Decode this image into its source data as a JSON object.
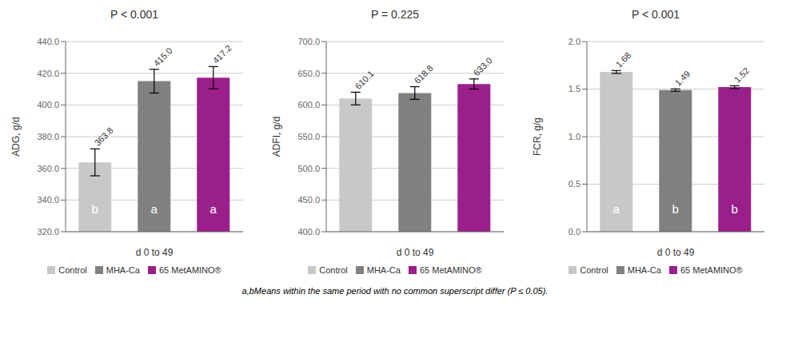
{
  "chart_data": [
    {
      "type": "bar",
      "title": "P < 0.001",
      "x_label": "d 0 to 49",
      "y_label": "ADG, g/d",
      "categories": [
        "Control",
        "MHA-Ca",
        "65 MetAMINO®"
      ],
      "colors": [
        "#c8c8c8",
        "#808080",
        "#9b1f8a"
      ],
      "values": [
        363.8,
        415.0,
        417.2
      ],
      "errors": [
        8.5,
        7.5,
        7.0
      ],
      "value_labels": [
        "363.8",
        "415.0",
        "417.2"
      ],
      "data_labels": true,
      "annotations": [
        {
          "category": "Control",
          "text": "b",
          "color": "#ffffff"
        },
        {
          "category": "MHA-Ca",
          "text": "a",
          "color": "#ffffff"
        },
        {
          "category": "65 MetAMINO®",
          "text": "a",
          "color": "#ffffff"
        }
      ],
      "ylim": [
        320.0,
        440.0
      ],
      "yticks": [
        {
          "value": 320.0,
          "label": "320.0"
        },
        {
          "value": 340.0,
          "label": "340.0"
        },
        {
          "value": 360.0,
          "label": "360.0"
        },
        {
          "value": 380.0,
          "label": "380.0"
        },
        {
          "value": 400.0,
          "label": "400.0"
        },
        {
          "value": 420.0,
          "label": "420.0"
        },
        {
          "value": 440.0,
          "label": "440.0"
        }
      ],
      "grid": true,
      "legend": "bottom",
      "tick_labels": "y"
    },
    {
      "type": "bar",
      "title": "P = 0.225",
      "x_label": "d 0 to 49",
      "y_label": "ADFI, g/d",
      "categories": [
        "Control",
        "MHA-Ca",
        "65 MetAMINO®"
      ],
      "colors": [
        "#c8c8c8",
        "#808080",
        "#9b1f8a"
      ],
      "values": [
        610.1,
        618.8,
        633.0
      ],
      "errors": [
        10.0,
        10.0,
        8.0
      ],
      "value_labels": [
        "610.1",
        "618.8",
        "633.0"
      ],
      "data_labels": true,
      "ylim": [
        400.0,
        700.0
      ],
      "yticks": [
        {
          "value": 400.0,
          "label": "400.0"
        },
        {
          "value": 450.0,
          "label": "450.0"
        },
        {
          "value": 500.0,
          "label": "500.0"
        },
        {
          "value": 550.0,
          "label": "550.0"
        },
        {
          "value": 600.0,
          "label": "600.0"
        },
        {
          "value": 650.0,
          "label": "650.0"
        },
        {
          "value": 700.0,
          "label": "700.0"
        }
      ],
      "grid": true,
      "legend": "bottom",
      "tick_labels": "y"
    },
    {
      "type": "bar",
      "title": "P < 0.001",
      "x_label": "d 0 to 49",
      "y_label": "FCR, g/g",
      "categories": [
        "Control",
        "MHA-Ca",
        "65 MetAMINO®"
      ],
      "colors": [
        "#c8c8c8",
        "#808080",
        "#9b1f8a"
      ],
      "values": [
        1.68,
        1.49,
        1.52
      ],
      "errors": [
        0.015,
        0.012,
        0.015
      ],
      "value_labels": [
        "1.68",
        "1.49",
        "1.52"
      ],
      "data_labels": true,
      "annotations": [
        {
          "category": "Control",
          "text": "a",
          "color": "#ffffff"
        },
        {
          "category": "MHA-Ca",
          "text": "b",
          "color": "#ffffff"
        },
        {
          "category": "65 MetAMINO®",
          "text": "b",
          "color": "#ffffff"
        }
      ],
      "ylim": [
        0.0,
        2.0
      ],
      "yticks": [
        {
          "value": 0.0,
          "label": "0.0"
        },
        {
          "value": 0.5,
          "label": "0.5"
        },
        {
          "value": 1.0,
          "label": "1.0"
        },
        {
          "value": 1.5,
          "label": "1.5"
        },
        {
          "value": 2.0,
          "label": "2.0"
        }
      ],
      "grid": true,
      "legend": "bottom",
      "tick_labels": "y"
    }
  ],
  "footnote": "a,bMeans within the same period with no common superscript differ (P ≤ 0.05)."
}
